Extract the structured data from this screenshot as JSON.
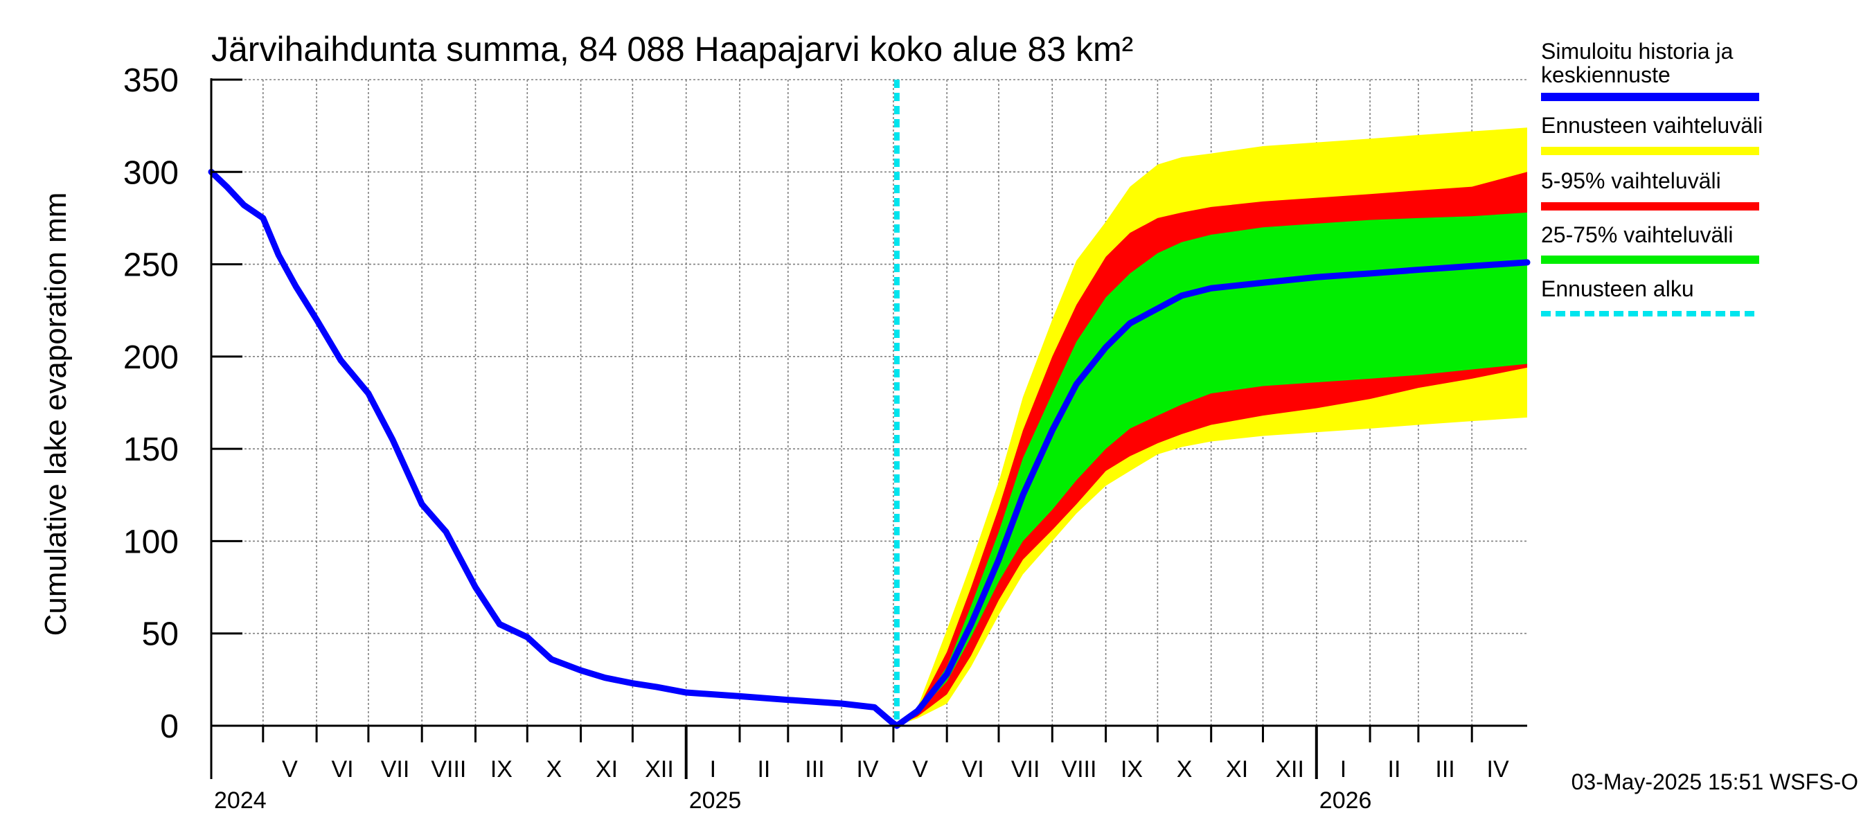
{
  "chart_data": {
    "type": "area",
    "title": "Järvihaihdunta summa, 84 088 Haapajarvi koko alue 83 km²",
    "ylabel": "Cumulative lake evaporation   mm",
    "ylim": [
      0,
      350
    ],
    "yticks": [
      "0",
      "50",
      "100",
      "150",
      "200",
      "250",
      "300",
      "350"
    ],
    "xlim": [
      "2024-04-01",
      "2026-05-03"
    ],
    "forecast_start": "2025-05-03",
    "grid": true,
    "legend_position": "right",
    "months": [
      {
        "label": "V",
        "date": "2024-05"
      },
      {
        "label": "VI",
        "date": "2024-06"
      },
      {
        "label": "VII",
        "date": "2024-07"
      },
      {
        "label": "VIII",
        "date": "2024-08"
      },
      {
        "label": "IX",
        "date": "2024-09"
      },
      {
        "label": "X",
        "date": "2024-10"
      },
      {
        "label": "XI",
        "date": "2024-11"
      },
      {
        "label": "XII",
        "date": "2024-12"
      },
      {
        "label": "I",
        "date": "2025-01"
      },
      {
        "label": "II",
        "date": "2025-02"
      },
      {
        "label": "III",
        "date": "2025-03"
      },
      {
        "label": "IV",
        "date": "2025-04"
      },
      {
        "label": "V",
        "date": "2025-05"
      },
      {
        "label": "VI",
        "date": "2025-06"
      },
      {
        "label": "VII",
        "date": "2025-07"
      },
      {
        "label": "VIII",
        "date": "2025-08"
      },
      {
        "label": "IX",
        "date": "2025-09"
      },
      {
        "label": "X",
        "date": "2025-10"
      },
      {
        "label": "XI",
        "date": "2025-11"
      },
      {
        "label": "XII",
        "date": "2025-12"
      },
      {
        "label": "I",
        "date": "2026-01"
      },
      {
        "label": "II",
        "date": "2026-02"
      },
      {
        "label": "III",
        "date": "2026-03"
      },
      {
        "label": "IV",
        "date": "2026-04"
      }
    ],
    "years": [
      {
        "label": "2024",
        "date": "2024-04-01"
      },
      {
        "label": "2025",
        "date": "2025-01-01"
      },
      {
        "label": "2026",
        "date": "2026-01-01"
      }
    ],
    "legend": [
      {
        "label": "Simuloitu historia ja keskiennuste",
        "color": "#0000ff",
        "style": "solid"
      },
      {
        "label": "Ennusteen vaihteluväli",
        "color": "#ffff00",
        "style": "solid"
      },
      {
        "label": "5-95% vaihteluväli",
        "color": "#ff0000",
        "style": "solid"
      },
      {
        "label": "25-75% vaihteluväli",
        "color": "#00ee00",
        "style": "solid"
      },
      {
        "label": "Ennusteen alku",
        "color": "#00e5ee",
        "style": "dashed"
      }
    ],
    "x": [
      "2025-05-03",
      "2025-05-15",
      "2025-06-01",
      "2025-06-15",
      "2025-07-01",
      "2025-07-15",
      "2025-08-01",
      "2025-08-15",
      "2025-09-01",
      "2025-09-15",
      "2025-10-01",
      "2025-10-15",
      "2025-11-01",
      "2025-12-01",
      "2026-01-01",
      "2026-02-01",
      "2026-03-01",
      "2026-04-01",
      "2026-05-03"
    ],
    "series": [
      {
        "name": "Ennusteen vaihteluväli",
        "color": "#ffff00",
        "lower": [
          0,
          4,
          12,
          32,
          60,
          82,
          100,
          115,
          130,
          138,
          147,
          151,
          154,
          157,
          159,
          161,
          163,
          165,
          167
        ],
        "upper": [
          0,
          10,
          52,
          88,
          132,
          178,
          220,
          252,
          273,
          292,
          304,
          308,
          310,
          314,
          316,
          318,
          320,
          322,
          324
        ]
      },
      {
        "name": "5-95% vaihteluväli",
        "color": "#ff0000",
        "lower": [
          0,
          5,
          17,
          38,
          68,
          90,
          106,
          120,
          138,
          146,
          153,
          158,
          163,
          168,
          172,
          177,
          183,
          188,
          194
        ],
        "upper": [
          0,
          9,
          40,
          75,
          118,
          160,
          200,
          228,
          254,
          267,
          275,
          278,
          281,
          284,
          286,
          288,
          290,
          292,
          300
        ]
      },
      {
        "name": "25-75% vaihteluväli",
        "color": "#00ee00",
        "lower": [
          0,
          7,
          24,
          48,
          78,
          100,
          117,
          133,
          150,
          161,
          168,
          174,
          180,
          184,
          186,
          188,
          190,
          193,
          196
        ],
        "upper": [
          0,
          8,
          32,
          65,
          105,
          145,
          180,
          208,
          232,
          245,
          256,
          262,
          266,
          270,
          272,
          274,
          275,
          276,
          278
        ]
      },
      {
        "name": "Simuloitu historia ja keskiennuste",
        "color": "#0000ff",
        "x": [
          "2024-04-01",
          "2024-04-10",
          "2024-04-20",
          "2024-05-01",
          "2024-05-10",
          "2024-05-20",
          "2024-06-01",
          "2024-06-15",
          "2024-07-01",
          "2024-07-15",
          "2024-08-01",
          "2024-08-15",
          "2024-09-01",
          "2024-09-15",
          "2024-10-01",
          "2024-10-15",
          "2024-11-01",
          "2024-11-15",
          "2024-12-01",
          "2024-12-15",
          "2025-01-01",
          "2025-02-01",
          "2025-03-01",
          "2025-04-01",
          "2025-04-20",
          "2025-04-30",
          "2025-05-03",
          "2025-05-15",
          "2025-06-01",
          "2025-06-15",
          "2025-07-01",
          "2025-07-15",
          "2025-08-01",
          "2025-08-15",
          "2025-09-01",
          "2025-09-15",
          "2025-10-01",
          "2025-10-15",
          "2025-11-01",
          "2025-12-01",
          "2026-01-01",
          "2026-02-01",
          "2026-03-01",
          "2026-04-01",
          "2026-05-03"
        ],
        "values": [
          300,
          292,
          282,
          275,
          255,
          238,
          220,
          198,
          180,
          155,
          120,
          105,
          75,
          55,
          48,
          36,
          30,
          26,
          23,
          21,
          18,
          16,
          14,
          12,
          10,
          2,
          0,
          8,
          28,
          55,
          90,
          125,
          160,
          185,
          205,
          218,
          226,
          233,
          237,
          240,
          243,
          245,
          247,
          249,
          251
        ]
      }
    ]
  },
  "footer": {
    "timestamp": "03-May-2025 15:51 WSFS-O"
  }
}
